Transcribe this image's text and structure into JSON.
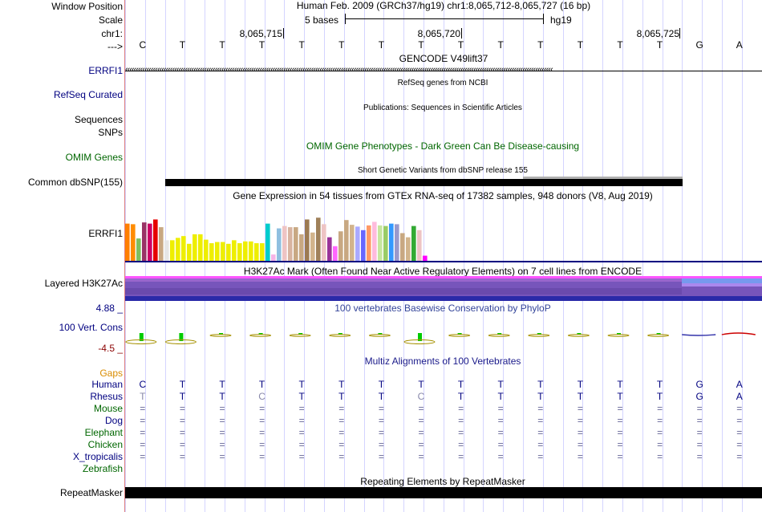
{
  "header": {
    "window_position_label": "Window Position",
    "scale_label": "Scale",
    "chrom_label": "chr1:",
    "arrow_label": "--->",
    "position_text": "Human Feb. 2009 (GRCh37/hg19)   chr1:8,065,712-8,065,727 (16 bp)",
    "scale_text": "5 bases",
    "scale_assembly": "hg19",
    "coord_ticks": [
      "8,065,715",
      "8,065,720",
      "8,065,725"
    ]
  },
  "sequence": [
    "C",
    "T",
    "T",
    "T",
    "T",
    "T",
    "T",
    "T",
    "T",
    "T",
    "T",
    "T",
    "T",
    "T",
    "G",
    "A"
  ],
  "tracks": {
    "gencode": {
      "title": "GENCODE V49lift37",
      "label": "ERRFI1"
    },
    "refseq": {
      "title": "RefSeq genes from NCBI",
      "label": "RefSeq Curated"
    },
    "publications": {
      "title": "Publications: Sequences in Scientific Articles",
      "label_line1": "Sequences",
      "label_line2": "SNPs"
    },
    "omim": {
      "title": "OMIM Gene Phenotypes - Dark Green Can Be Disease-causing",
      "label": "OMIM Genes"
    },
    "dbsnp": {
      "title": "Short Genetic Variants from dbSNP release 155",
      "label": "Common dbSNP(155)"
    },
    "gtex": {
      "title": "Gene Expression in 54 tissues from GTEx RNA-seq of 17382 samples, 948 donors (V8, Aug 2019)",
      "label": "ERRFI1"
    },
    "h3k27ac": {
      "title": "H3K27Ac Mark (Often Found Near Active Regulatory Elements) on 7 cell lines from ENCODE",
      "label": "Layered H3K27Ac"
    },
    "phylop": {
      "title": "100 vertebrates Basewise Conservation by PhyloP",
      "label": "100 Vert. Cons",
      "max": "4.88 _",
      "min": "-4.5 _"
    },
    "multiz": {
      "title": "Multiz Alignments of 100 Vertebrates",
      "gaps_label": "Gaps"
    },
    "repeatmasker": {
      "title": "Repeating Elements by RepeatMasker",
      "label": "RepeatMasker"
    }
  },
  "alignment": {
    "species": [
      "Human",
      "Rhesus",
      "Mouse",
      "Dog",
      "Elephant",
      "Chicken",
      "X_tropicalis",
      "Zebrafish"
    ],
    "human": [
      "C",
      "T",
      "T",
      "T",
      "T",
      "T",
      "T",
      "T",
      "T",
      "T",
      "T",
      "T",
      "T",
      "T",
      "G",
      "A"
    ],
    "rhesus": [
      "T",
      "T",
      "T",
      "C",
      "T",
      "T",
      "T",
      "C",
      "T",
      "T",
      "T",
      "T",
      "T",
      "T",
      "G",
      "A"
    ],
    "eq_symbol": "="
  },
  "gtex_bars": [
    {
      "v": 0.64,
      "c": "#ff7f00"
    },
    {
      "v": 0.63,
      "c": "#ff8c00"
    },
    {
      "v": 0.39,
      "c": "#7fbf5f"
    },
    {
      "v": 0.66,
      "c": "#993366"
    },
    {
      "v": 0.64,
      "c": "#cc0066"
    },
    {
      "v": 0.71,
      "c": "#e60000"
    },
    {
      "v": 0.58,
      "c": "#c8a882"
    },
    {
      "v": 0.36,
      "c": "#e6e6e6"
    },
    {
      "v": 0.36,
      "c": "#eeee00"
    },
    {
      "v": 0.4,
      "c": "#eeee00"
    },
    {
      "v": 0.43,
      "c": "#eeee00"
    },
    {
      "v": 0.3,
      "c": "#eeee00"
    },
    {
      "v": 0.46,
      "c": "#eeee00"
    },
    {
      "v": 0.46,
      "c": "#eeee00"
    },
    {
      "v": 0.37,
      "c": "#eeee00"
    },
    {
      "v": 0.31,
      "c": "#eeee00"
    },
    {
      "v": 0.33,
      "c": "#eeee00"
    },
    {
      "v": 0.33,
      "c": "#eeee00"
    },
    {
      "v": 0.3,
      "c": "#eeee00"
    },
    {
      "v": 0.36,
      "c": "#eeee00"
    },
    {
      "v": 0.31,
      "c": "#eeee00"
    },
    {
      "v": 0.34,
      "c": "#eeee00"
    },
    {
      "v": 0.34,
      "c": "#eeee00"
    },
    {
      "v": 0.31,
      "c": "#eeee00"
    },
    {
      "v": 0.31,
      "c": "#eeee00"
    },
    {
      "v": 0.64,
      "c": "#00cccc"
    },
    {
      "v": 0.12,
      "c": "#f5b4e6"
    },
    {
      "v": 0.56,
      "c": "#8fc0e0"
    },
    {
      "v": 0.6,
      "c": "#eec4c4"
    },
    {
      "v": 0.58,
      "c": "#d8b4a0"
    },
    {
      "v": 0.58,
      "c": "#c8a882"
    },
    {
      "v": 0.46,
      "c": "#c8a882"
    },
    {
      "v": 0.71,
      "c": "#9c7a52"
    },
    {
      "v": 0.49,
      "c": "#d2b48c"
    },
    {
      "v": 0.74,
      "c": "#a0815a"
    },
    {
      "v": 0.63,
      "c": "#eec4c4"
    },
    {
      "v": 0.41,
      "c": "#993399"
    },
    {
      "v": 0.26,
      "c": "#ff66ff"
    },
    {
      "v": 0.51,
      "c": "#c8a882"
    },
    {
      "v": 0.7,
      "c": "#c8a882"
    },
    {
      "v": 0.62,
      "c": "#d2b48c"
    },
    {
      "v": 0.59,
      "c": "#aaaaff"
    },
    {
      "v": 0.53,
      "c": "#6666ff"
    },
    {
      "v": 0.61,
      "c": "#ff9966"
    },
    {
      "v": 0.67,
      "c": "#ffbbdd"
    },
    {
      "v": 0.61,
      "c": "#c8e6a0"
    },
    {
      "v": 0.6,
      "c": "#99cc66"
    },
    {
      "v": 0.64,
      "c": "#3399ff"
    },
    {
      "v": 0.63,
      "c": "#9999cc"
    },
    {
      "v": 0.48,
      "c": "#c8a882"
    },
    {
      "v": 0.41,
      "c": "#d2b48c"
    },
    {
      "v": 0.6,
      "c": "#33aa33"
    },
    {
      "v": 0.53,
      "c": "#eec4c4"
    },
    {
      "v": 0.1,
      "c": "#ff00ff"
    }
  ],
  "colors": {
    "track_label_blue": "#000080",
    "omim_green": "#006600",
    "gtex_title": "#000000",
    "grid": "#d4d4ff",
    "guide_red": "#e08080",
    "phylop_max": "#000080",
    "phylop_min": "#8b0000"
  }
}
